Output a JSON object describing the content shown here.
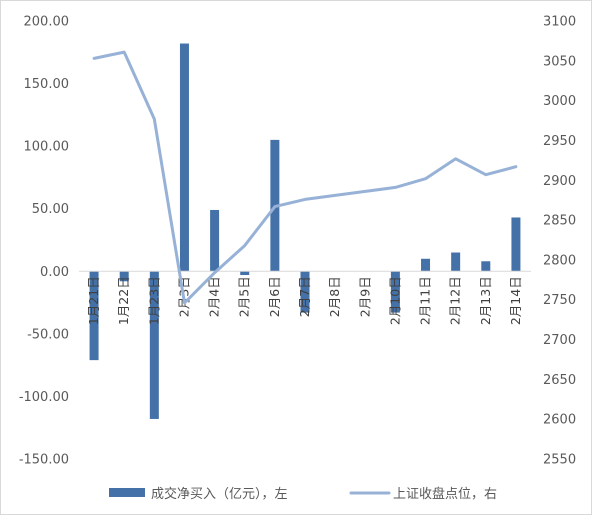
{
  "chart_data": {
    "type": "bar+line",
    "categories": [
      "1月21日",
      "1月22日",
      "1月23日",
      "2月3日",
      "2月4日",
      "2月5日",
      "2月6日",
      "2月7日",
      "2月8日",
      "2月9日",
      "2月10日",
      "2月11日",
      "2月12日",
      "2月13日",
      "2月14日"
    ],
    "series": [
      {
        "name": "成交净买入（亿元），左",
        "type": "bar",
        "axis": "left",
        "color": "#4472a8",
        "values": [
          -71,
          -8,
          -118,
          182,
          49,
          -3,
          105,
          -33,
          0,
          0,
          -33,
          10,
          15,
          8,
          43
        ]
      },
      {
        "name": "上证收盘点位，右",
        "type": "line",
        "axis": "right",
        "color": "#97b2d6",
        "values": [
          3053,
          3061,
          2977,
          2746,
          2784,
          2818,
          2867,
          2876,
          2881,
          2886,
          2891,
          2902,
          2927,
          2907,
          2917
        ]
      }
    ],
    "y_left": {
      "min": -150,
      "max": 200,
      "step": 50,
      "ticks": [
        "-150.00",
        "-100.00",
        "-50.00",
        "0.00",
        "50.00",
        "100.00",
        "150.00",
        "200.00"
      ]
    },
    "y_right": {
      "min": 2550,
      "max": 3100,
      "step": 50,
      "ticks": [
        "2550",
        "2600",
        "2650",
        "2700",
        "2750",
        "2800",
        "2850",
        "2900",
        "2950",
        "3000",
        "3050",
        "3100"
      ]
    },
    "legend_position": "bottom",
    "grid": false
  }
}
